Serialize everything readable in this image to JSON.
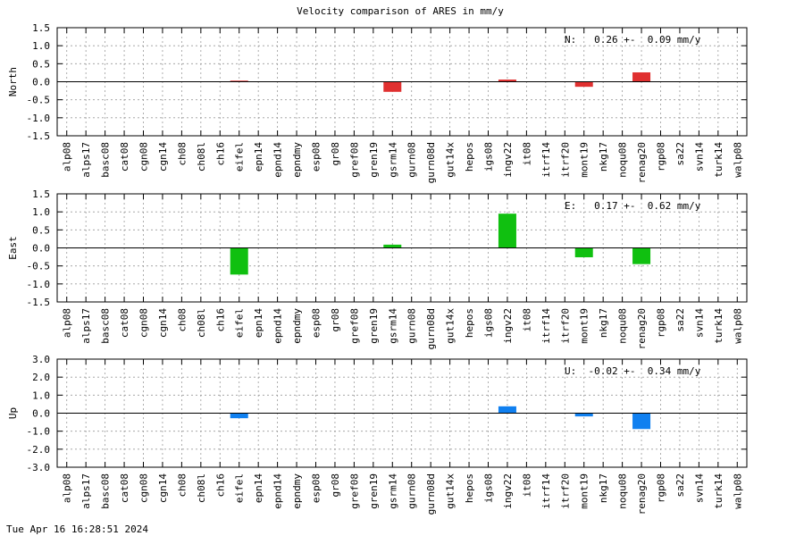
{
  "title": "Velocity comparison of ARES in mm/y",
  "timestamp": "Tue Apr 16 16:28:51 2024",
  "chart_data": [
    {
      "type": "bar",
      "ylabel": "North",
      "ylim": [
        -1.5,
        1.5
      ],
      "yticks": [
        "1.5",
        "1.0",
        "0.5",
        "0.0",
        "-0.5",
        "-1.0",
        "-1.5"
      ],
      "summary": "N:   0.26 +-  0.09 mm/y",
      "color": "#e03030",
      "grid": true,
      "categories": [
        "alp08",
        "alps17",
        "basc08",
        "cat08",
        "cgn08",
        "cgn14",
        "ch08",
        "ch08l",
        "ch16",
        "eifel",
        "epn14",
        "epnd14",
        "epndmy",
        "esp08",
        "gr08",
        "gref08",
        "gren19",
        "gsrm14",
        "gurn08",
        "gurn08d",
        "gut14x",
        "hepos",
        "igs08",
        "ingv22",
        "it08",
        "itrf14",
        "itrf20",
        "mont19",
        "nkg17",
        "noqu08",
        "renag20",
        "rgp08",
        "sa22",
        "svn14",
        "turk14",
        "walp08"
      ],
      "values": [
        0,
        0,
        0,
        0,
        0,
        0,
        0,
        0,
        0,
        0.03,
        0,
        0,
        0,
        0,
        0,
        0,
        0,
        -0.28,
        0,
        0,
        0,
        0,
        0,
        0.06,
        0,
        0,
        0,
        -0.14,
        0,
        0,
        0.26,
        0,
        0,
        0,
        0,
        0
      ]
    },
    {
      "type": "bar",
      "ylabel": "East",
      "ylim": [
        -1.5,
        1.5
      ],
      "yticks": [
        "1.5",
        "1.0",
        "0.5",
        "0.0",
        "-0.5",
        "-1.0",
        "-1.5"
      ],
      "summary": "E:   0.17 +-  0.62 mm/y",
      "color": "#10c010",
      "grid": true,
      "categories": [
        "alp08",
        "alps17",
        "basc08",
        "cat08",
        "cgn08",
        "cgn14",
        "ch08",
        "ch08l",
        "ch16",
        "eifel",
        "epn14",
        "epnd14",
        "epndmy",
        "esp08",
        "gr08",
        "gref08",
        "gren19",
        "gsrm14",
        "gurn08",
        "gurn08d",
        "gut14x",
        "hepos",
        "igs08",
        "ingv22",
        "it08",
        "itrf14",
        "itrf20",
        "mont19",
        "nkg17",
        "noqu08",
        "renag20",
        "rgp08",
        "sa22",
        "svn14",
        "turk14",
        "walp08"
      ],
      "values": [
        0,
        0,
        0,
        0,
        0,
        0,
        0,
        0,
        0,
        -0.74,
        0,
        0,
        0,
        0,
        0,
        0,
        0,
        0.09,
        0,
        0,
        0,
        0,
        0,
        0.95,
        0,
        0,
        0,
        -0.26,
        0,
        0,
        -0.45,
        0,
        0,
        0,
        0,
        0
      ]
    },
    {
      "type": "bar",
      "ylabel": "Up",
      "ylim": [
        -3.0,
        3.0
      ],
      "yticks": [
        "3.0",
        "2.0",
        "1.0",
        "0.0",
        "-1.0",
        "-2.0",
        "-3.0"
      ],
      "summary": "U:  -0.02 +-  0.34 mm/y",
      "color": "#1080f0",
      "grid": true,
      "categories": [
        "alp08",
        "alps17",
        "basc08",
        "cat08",
        "cgn08",
        "cgn14",
        "ch08",
        "ch08l",
        "ch16",
        "eifel",
        "epn14",
        "epnd14",
        "epndmy",
        "esp08",
        "gr08",
        "gref08",
        "gren19",
        "gsrm14",
        "gurn08",
        "gurn08d",
        "gut14x",
        "hepos",
        "igs08",
        "ingv22",
        "it08",
        "itrf14",
        "itrf20",
        "mont19",
        "nkg17",
        "noqu08",
        "renag20",
        "rgp08",
        "sa22",
        "svn14",
        "turk14",
        "walp08"
      ],
      "values": [
        0,
        0,
        0,
        0,
        0,
        0,
        0,
        0,
        0,
        -0.28,
        0,
        0,
        0,
        0,
        0,
        0,
        0,
        0,
        0,
        0,
        0,
        0,
        0,
        0.38,
        0,
        0,
        0,
        -0.18,
        0,
        0,
        -0.88,
        0,
        0,
        0,
        0,
        0
      ]
    }
  ]
}
